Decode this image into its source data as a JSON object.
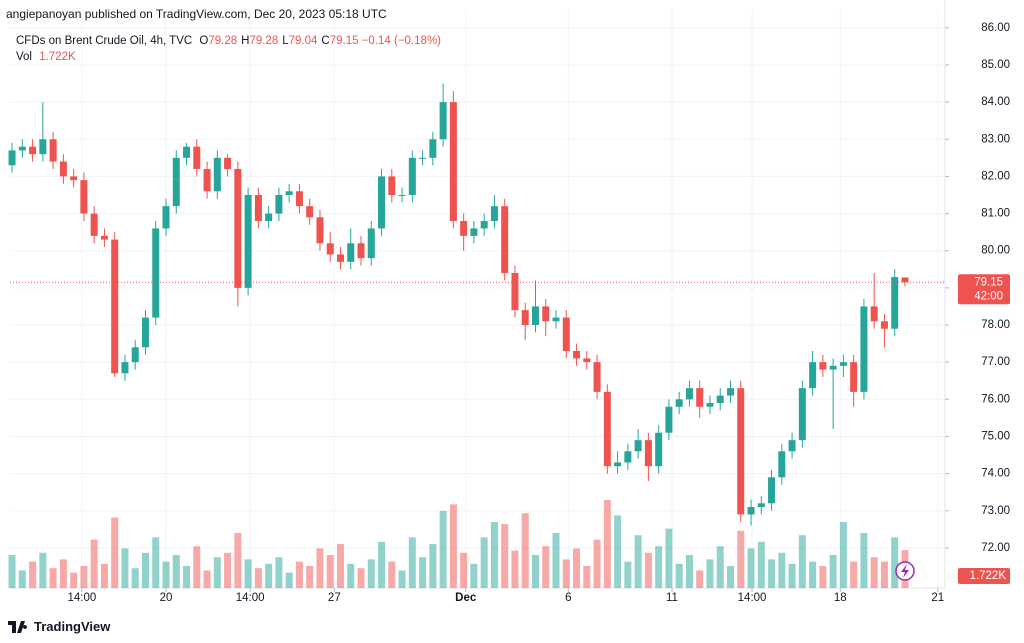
{
  "header": {
    "published": "angiepanoyan published on TradingView.com, Dec 20, 2023 05:18 UTC"
  },
  "footer": {
    "brand": "TradingView"
  },
  "chart_data": {
    "type": "candlestick",
    "symbol": "CFDs on Brent Crude Oil, 4h, TVC",
    "ohlc_legend": [
      {
        "label": "O",
        "value": 79.28
      },
      {
        "label": "H",
        "value": 79.28
      },
      {
        "label": "L",
        "value": 79.04
      },
      {
        "label": "C",
        "value": 79.15
      }
    ],
    "change": -0.14,
    "change_label": "−0.14",
    "change_pct": -0.18,
    "change_pct_label": "(−0.18%)",
    "volume_title": "Vol",
    "last_volume": 1.722,
    "last_volume_label": "1.722K",
    "last_price": 79.15,
    "countdown": "42:00",
    "up_color": "#26a69a",
    "down_color": "#ef5350",
    "xlim": [
      -0.2,
      90.9
    ],
    "xticks": [
      {
        "value": 6.8,
        "label": "14:00"
      },
      {
        "value": 15.0,
        "label": "20"
      },
      {
        "value": 23.2,
        "label": "14:00"
      },
      {
        "value": 31.4,
        "label": "27"
      },
      {
        "value": 44.2,
        "label": "Dec",
        "bold": true
      },
      {
        "value": 54.2,
        "label": "6"
      },
      {
        "value": 64.3,
        "label": "11"
      },
      {
        "value": 72.1,
        "label": "14:00"
      },
      {
        "value": 80.7,
        "label": "18"
      },
      {
        "value": 90.2,
        "label": "21"
      }
    ],
    "ylim": [
      70.92,
      86.48
    ],
    "yticks": [
      {
        "value": 72,
        "label": "72.00"
      },
      {
        "value": 73,
        "label": "73.00"
      },
      {
        "value": 74,
        "label": "74.00"
      },
      {
        "value": 75,
        "label": "75.00"
      },
      {
        "value": 76,
        "label": "76.00"
      },
      {
        "value": 77,
        "label": "77.00"
      },
      {
        "value": 78,
        "label": "78.00"
      },
      {
        "value": 79,
        "label": "79.00"
      },
      {
        "value": 80,
        "label": "80.00"
      },
      {
        "value": 81,
        "label": "81.00"
      },
      {
        "value": 82,
        "label": "82.00"
      },
      {
        "value": 83,
        "label": "83.00"
      },
      {
        "value": 84,
        "label": "84.00"
      },
      {
        "value": 85,
        "label": "85.00"
      },
      {
        "value": 86,
        "label": "86.00"
      }
    ],
    "grid": true,
    "open": [
      82.3,
      82.7,
      82.8,
      82.6,
      83.0,
      82.4,
      82.0,
      81.9,
      81.0,
      80.4,
      80.3,
      76.7,
      77.0,
      77.4,
      78.2,
      80.6,
      81.2,
      82.5,
      82.8,
      82.2,
      81.6,
      82.5,
      82.2,
      79.0,
      81.5,
      80.8,
      81.0,
      81.5,
      81.6,
      81.2,
      80.9,
      80.2,
      79.9,
      79.7,
      80.2,
      79.8,
      80.6,
      82.0,
      81.5,
      81.5,
      82.5,
      82.5,
      83.0,
      84.0,
      80.8,
      80.4,
      80.6,
      80.8,
      81.2,
      79.4,
      78.4,
      78.0,
      78.5,
      78.1,
      78.2,
      77.3,
      77.1,
      77.0,
      76.2,
      74.2,
      74.3,
      74.6,
      74.9,
      74.2,
      75.1,
      75.8,
      76.0,
      76.3,
      75.8,
      75.9,
      76.1,
      76.3,
      72.9,
      73.1,
      73.2,
      73.9,
      74.6,
      74.9,
      76.3,
      77.0,
      76.8,
      76.9,
      77.0,
      76.2,
      78.5,
      78.1,
      77.9,
      79.28
    ],
    "high": [
      82.9,
      83.0,
      83.0,
      84.0,
      83.2,
      82.6,
      82.2,
      82.1,
      81.2,
      80.6,
      80.5,
      77.2,
      77.6,
      78.4,
      80.8,
      81.4,
      82.7,
      82.9,
      83.0,
      82.4,
      82.7,
      82.6,
      82.4,
      81.7,
      81.7,
      81.2,
      81.7,
      81.8,
      81.8,
      81.4,
      81.1,
      80.5,
      80.1,
      80.6,
      80.4,
      80.8,
      82.2,
      82.2,
      81.7,
      82.7,
      82.7,
      83.2,
      84.5,
      84.3,
      81.0,
      80.8,
      81.0,
      81.5,
      81.4,
      79.6,
      78.6,
      79.2,
      78.7,
      78.4,
      78.4,
      77.5,
      77.3,
      77.2,
      76.4,
      74.6,
      74.8,
      75.2,
      75.1,
      75.3,
      76.0,
      76.2,
      76.5,
      76.5,
      76.1,
      76.3,
      76.5,
      76.5,
      73.3,
      73.4,
      74.1,
      74.8,
      75.1,
      76.5,
      77.3,
      77.2,
      77.1,
      77.2,
      77.2,
      78.7,
      79.4,
      78.3,
      79.5,
      79.28
    ],
    "low": [
      82.1,
      82.5,
      82.4,
      82.4,
      82.2,
      81.8,
      81.7,
      80.8,
      80.2,
      80.1,
      76.6,
      76.5,
      76.8,
      77.2,
      78.0,
      80.4,
      81.0,
      82.3,
      82.0,
      81.4,
      81.4,
      82.0,
      78.5,
      78.8,
      80.6,
      80.6,
      80.8,
      81.3,
      81.0,
      80.7,
      80.0,
      79.7,
      79.5,
      79.5,
      79.6,
      79.6,
      80.4,
      81.3,
      81.3,
      81.3,
      82.3,
      82.3,
      82.8,
      80.6,
      80.0,
      80.2,
      80.4,
      80.6,
      79.2,
      78.2,
      77.6,
      77.8,
      77.7,
      77.9,
      77.1,
      76.9,
      76.8,
      76.0,
      74.0,
      74.0,
      74.1,
      74.4,
      73.8,
      74.0,
      74.9,
      75.6,
      75.8,
      75.5,
      75.6,
      75.7,
      75.9,
      72.7,
      72.6,
      72.9,
      73.0,
      73.7,
      74.4,
      74.7,
      76.1,
      76.6,
      75.2,
      76.6,
      75.8,
      76.0,
      77.9,
      77.4,
      77.7,
      79.04
    ],
    "close": [
      82.7,
      82.8,
      82.6,
      83.0,
      82.4,
      82.0,
      81.9,
      81.0,
      80.4,
      80.3,
      76.7,
      77.0,
      77.4,
      78.2,
      80.6,
      81.2,
      82.5,
      82.8,
      82.2,
      81.6,
      82.5,
      82.2,
      79.0,
      81.5,
      80.8,
      81.0,
      81.5,
      81.6,
      81.2,
      80.9,
      80.2,
      79.9,
      79.7,
      80.2,
      79.8,
      80.6,
      82.0,
      81.5,
      81.5,
      82.5,
      82.5,
      83.0,
      84.0,
      80.8,
      80.4,
      80.6,
      80.8,
      81.2,
      79.4,
      78.4,
      78.0,
      78.5,
      78.1,
      78.2,
      77.3,
      77.1,
      77.0,
      76.2,
      74.2,
      74.3,
      74.6,
      74.9,
      74.2,
      75.1,
      75.8,
      76.0,
      76.3,
      75.8,
      75.9,
      76.1,
      76.3,
      72.9,
      73.1,
      73.2,
      73.9,
      74.6,
      74.9,
      76.3,
      77.0,
      76.8,
      76.9,
      77.0,
      76.2,
      78.5,
      78.1,
      77.9,
      79.29,
      79.15
    ],
    "volume": [
      1.5,
      0.8,
      1.2,
      1.6,
      0.9,
      1.3,
      0.7,
      1.0,
      2.2,
      1.1,
      3.2,
      1.8,
      0.9,
      1.6,
      2.3,
      1.2,
      1.5,
      1.0,
      1.9,
      0.8,
      1.4,
      1.6,
      2.5,
      1.3,
      0.9,
      1.1,
      1.4,
      0.7,
      1.2,
      1.0,
      1.8,
      1.5,
      2.0,
      1.1,
      0.9,
      1.3,
      2.1,
      1.2,
      0.8,
      2.3,
      1.4,
      2.0,
      3.5,
      3.8,
      1.6,
      1.1,
      2.3,
      3.0,
      2.9,
      1.7,
      3.4,
      1.5,
      1.9,
      2.5,
      1.3,
      1.8,
      1.0,
      2.2,
      4.0,
      3.3,
      1.2,
      2.4,
      1.6,
      1.9,
      2.7,
      1.1,
      1.5,
      0.8,
      1.3,
      1.9,
      1.0,
      2.6,
      1.8,
      2.1,
      1.3,
      1.6,
      1.1,
      2.4,
      1.2,
      1.0,
      1.5,
      3.0,
      1.2,
      2.5,
      1.4,
      1.2,
      2.3,
      1.722
    ]
  }
}
